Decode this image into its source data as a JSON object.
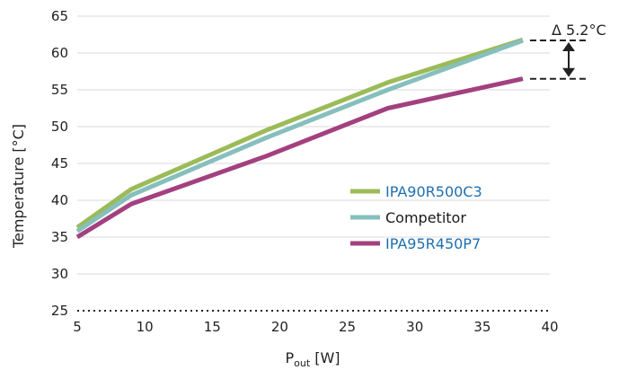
{
  "chart_data": {
    "type": "line",
    "xlabel": "P",
    "xlabel_sub": "out",
    "xlabel_unit": " [W]",
    "ylabel": "Temperature [°C]",
    "xlim": [
      5,
      40
    ],
    "ylim": [
      25,
      65
    ],
    "xticks": [
      5,
      10,
      15,
      20,
      25,
      30,
      35,
      40
    ],
    "yticks": [
      25,
      30,
      35,
      40,
      45,
      50,
      55,
      60,
      65
    ],
    "grid": "horizontal",
    "legend_position": "right-middle",
    "series": [
      {
        "name": "IPA90R500C3",
        "color": "#9bbb59",
        "label_color": "#1f6fb2",
        "x": [
          5,
          9,
          19,
          28,
          38
        ],
        "y": [
          36.3,
          41.5,
          49.5,
          56.0,
          61.8
        ]
      },
      {
        "name": "Competitor",
        "color": "#86bfbd",
        "label_color": "#1a1a1a",
        "x": [
          5,
          9,
          19,
          28,
          38
        ],
        "y": [
          35.8,
          40.7,
          48.5,
          55.0,
          61.7
        ]
      },
      {
        "name": "IPA95R450P7",
        "color": "#a3407f",
        "label_color": "#1f6fb2",
        "x": [
          5,
          9,
          19,
          28,
          38
        ],
        "y": [
          35.0,
          39.5,
          46.0,
          52.5,
          56.5
        ]
      }
    ],
    "annotation": {
      "text": "Δ 5.2°C",
      "from_y": 61.7,
      "to_y": 56.5,
      "at_x": 38
    }
  }
}
